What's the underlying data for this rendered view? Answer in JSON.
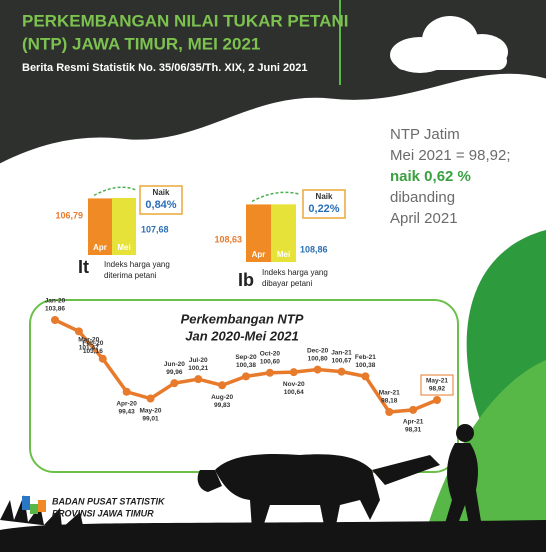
{
  "header": {
    "title_lines": [
      "PERKEMBANGAN NILAI TUKAR PETANI",
      "(NTP) JAWA TIMUR, MEI 2021"
    ],
    "subtitle": "Berita Resmi Statistik No. 35/06/35/Th. XIX, 2 Juni 2021"
  },
  "summary": {
    "lines": [
      "NTP Jatim",
      "Mei 2021 = 98,92;"
    ],
    "highlight": "naik 0,62 %",
    "tail_lines": [
      "dibanding",
      "April 2021"
    ]
  },
  "footer": {
    "lines": [
      "BADAN PUSAT STATISTIK",
      "PROVINSI JAWA TIMUR"
    ]
  },
  "chart_data": [
    {
      "type": "bar",
      "symbol": "It",
      "caption_lines": [
        "Indeks harga yang",
        "diterima petani"
      ],
      "categories": [
        "Apr",
        "Mei"
      ],
      "values": [
        106.79,
        107.68
      ],
      "value_labels": [
        "106,79",
        "107,68"
      ],
      "colors": [
        "#f08a24",
        "#e6e23a"
      ],
      "annotation": [
        "Naik",
        "0,84%"
      ]
    },
    {
      "type": "bar",
      "symbol": "Ib",
      "caption_lines": [
        "Indeks harga yang",
        "dibayar petani"
      ],
      "categories": [
        "Apr",
        "Mei"
      ],
      "values": [
        108.63,
        108.86
      ],
      "value_labels": [
        "108,63",
        "108,86"
      ],
      "colors": [
        "#f08a24",
        "#e6e23a"
      ],
      "annotation": [
        "Naik",
        "0,22%"
      ]
    },
    {
      "type": "line",
      "title_lines": [
        "Perkembangan NTP",
        "Jan 2020-Mei 2021"
      ],
      "color": "#e87a2c",
      "categories": [
        "Jan-20",
        "Feb-20",
        "Mar-20",
        "Apr-20",
        "May-20",
        "Jun-20",
        "Jul-20",
        "Aug-20",
        "Sep-20",
        "Oct-20",
        "Nov-20",
        "Dec-20",
        "Jan-21",
        "Feb-21",
        "Mar-21",
        "Apr-21",
        "May-21"
      ],
      "values": [
        103.86,
        103.16,
        101.47,
        99.43,
        99.01,
        99.96,
        100.21,
        99.83,
        100.38,
        100.6,
        100.64,
        100.8,
        100.67,
        100.38,
        98.18,
        98.31,
        98.92
      ],
      "value_labels": [
        "103,86",
        "103,16",
        "101,47",
        "99,43",
        "99,01",
        "99,96",
        "100,21",
        "99,83",
        "100,38",
        "100,60",
        "100,64",
        "100,80",
        "100,67",
        "100,38",
        "98,18",
        "98,31",
        "98,92"
      ]
    }
  ]
}
